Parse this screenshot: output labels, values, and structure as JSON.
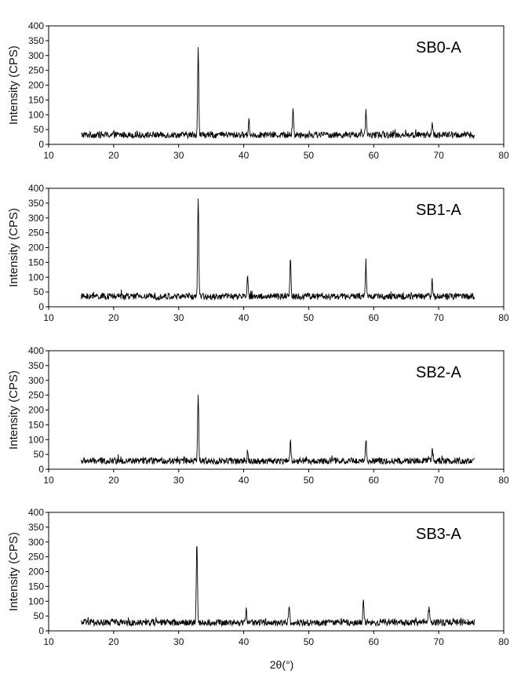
{
  "figure": {
    "xlabel": "2θ(°)"
  },
  "chart_data": [
    {
      "type": "line",
      "title": "SB0-A",
      "xlabel": "",
      "ylabel": "Intensity (CPS)",
      "xlim": [
        10,
        80
      ],
      "ylim": [
        0,
        400
      ],
      "xticks": [
        10,
        20,
        30,
        40,
        50,
        60,
        70,
        80
      ],
      "yticks": [
        0,
        50,
        100,
        150,
        200,
        250,
        300,
        350,
        400
      ],
      "grid": false,
      "baseline": 32,
      "x_range": [
        15,
        75.5
      ],
      "peaks": [
        {
          "x": 33.0,
          "y": 325
        },
        {
          "x": 40.8,
          "y": 82
        },
        {
          "x": 47.6,
          "y": 120
        },
        {
          "x": 58.8,
          "y": 110
        },
        {
          "x": 69.0,
          "y": 70
        }
      ]
    },
    {
      "type": "line",
      "title": "SB1-A",
      "xlabel": "",
      "ylabel": "Intensity (CPS)",
      "xlim": [
        10,
        80
      ],
      "ylim": [
        0,
        400
      ],
      "xticks": [
        10,
        20,
        30,
        40,
        50,
        60,
        70,
        80
      ],
      "yticks": [
        0,
        50,
        100,
        150,
        200,
        250,
        300,
        350,
        400
      ],
      "grid": false,
      "baseline": 35,
      "x_range": [
        15,
        75.5
      ],
      "peaks": [
        {
          "x": 33.0,
          "y": 368
        },
        {
          "x": 40.6,
          "y": 102
        },
        {
          "x": 47.2,
          "y": 165
        },
        {
          "x": 58.8,
          "y": 140
        },
        {
          "x": 69.0,
          "y": 90
        }
      ]
    },
    {
      "type": "line",
      "title": "SB2-A",
      "xlabel": "",
      "ylabel": "Intensity (CPS)",
      "xlim": [
        10,
        80
      ],
      "ylim": [
        0,
        400
      ],
      "xticks": [
        10,
        20,
        30,
        40,
        50,
        60,
        70,
        80
      ],
      "yticks": [
        0,
        50,
        100,
        150,
        200,
        250,
        300,
        350,
        400
      ],
      "grid": false,
      "baseline": 28,
      "x_range": [
        15,
        75.5
      ],
      "peaks": [
        {
          "x": 33.0,
          "y": 250
        },
        {
          "x": 40.6,
          "y": 58
        },
        {
          "x": 47.2,
          "y": 92
        },
        {
          "x": 58.8,
          "y": 105
        },
        {
          "x": 69.0,
          "y": 62
        }
      ]
    },
    {
      "type": "line",
      "title": "SB3-A",
      "xlabel": "2θ(°)",
      "ylabel": "Intensity (CPS)",
      "xlim": [
        10,
        80
      ],
      "ylim": [
        0,
        400
      ],
      "xticks": [
        10,
        20,
        30,
        40,
        50,
        60,
        70,
        80
      ],
      "yticks": [
        0,
        50,
        100,
        150,
        200,
        250,
        300,
        350,
        400
      ],
      "grid": false,
      "baseline": 28,
      "x_range": [
        15,
        75.5
      ],
      "peaks": [
        {
          "x": 32.8,
          "y": 300
        },
        {
          "x": 40.4,
          "y": 75
        },
        {
          "x": 47.0,
          "y": 92
        },
        {
          "x": 58.4,
          "y": 100
        },
        {
          "x": 68.5,
          "y": 75
        }
      ]
    }
  ]
}
